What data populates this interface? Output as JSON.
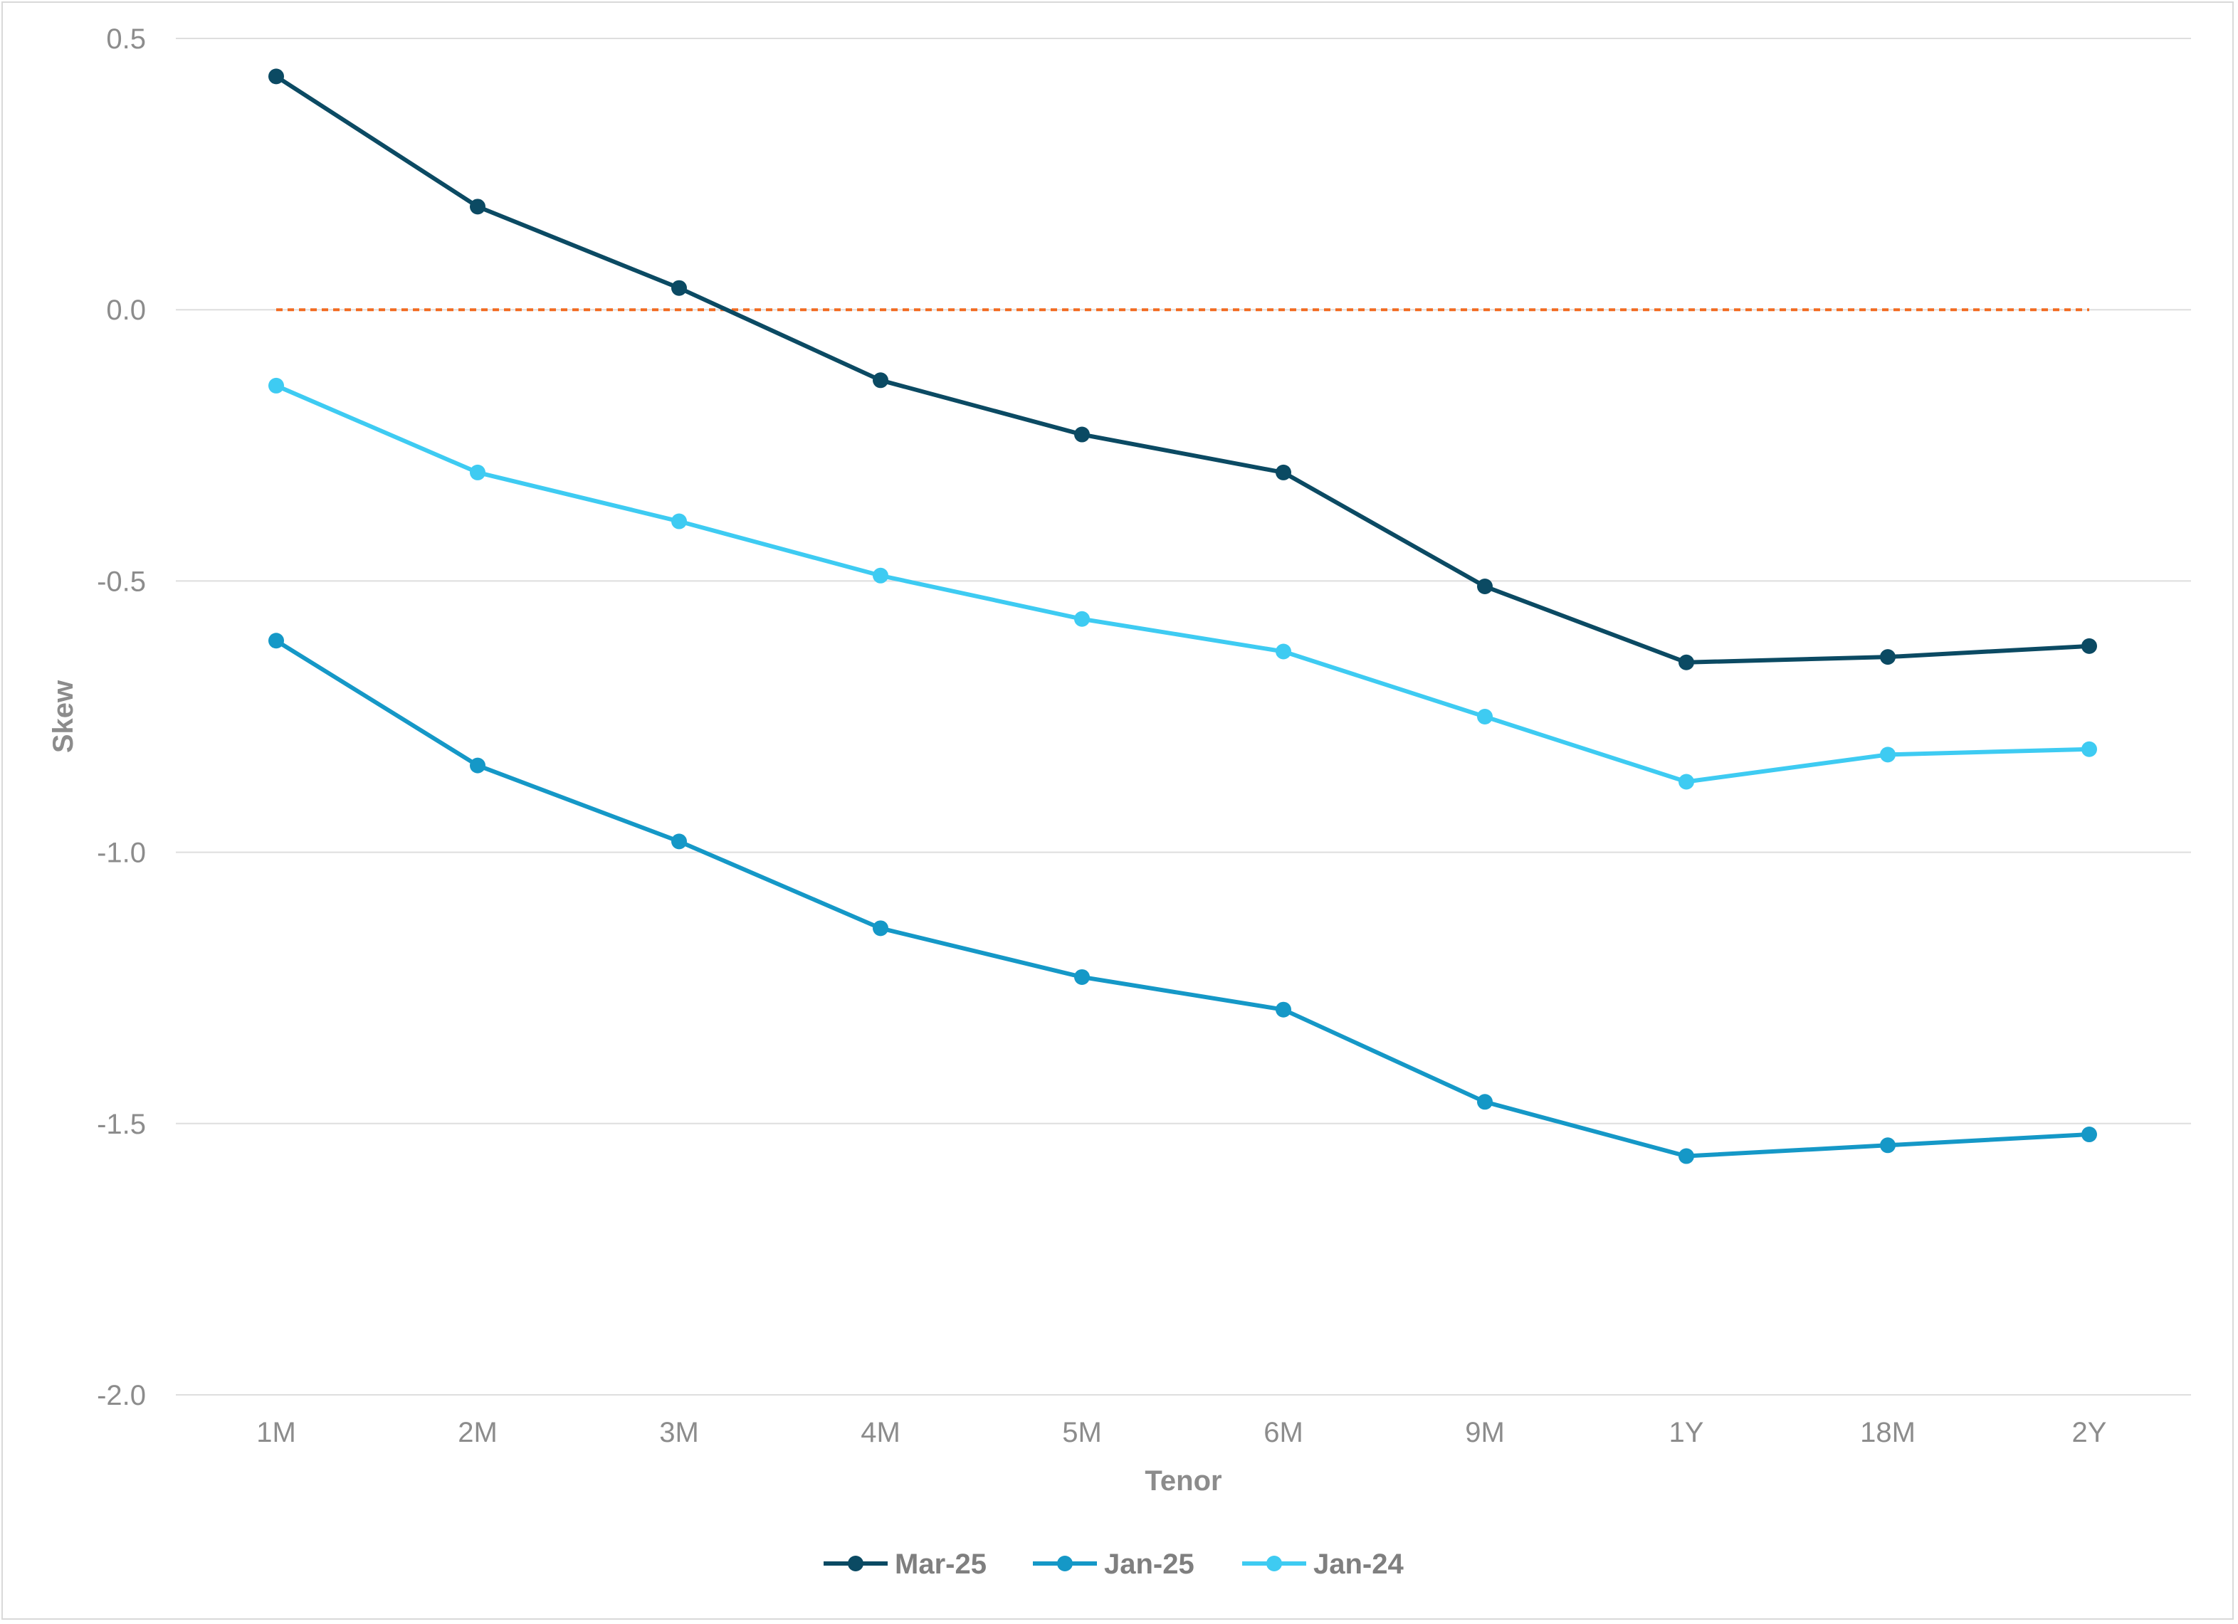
{
  "chart_data": {
    "type": "line",
    "title": "",
    "xlabel": "Tenor",
    "ylabel": "Skew",
    "categories": [
      "1M",
      "2M",
      "3M",
      "4M",
      "5M",
      "6M",
      "9M",
      "1Y",
      "18M",
      "2Y"
    ],
    "ylim": [
      -2.0,
      0.5
    ],
    "yticks": [
      "0.5",
      "0.0",
      "-0.5",
      "-1.0",
      "-1.5",
      "-2.0"
    ],
    "ytick_values": [
      0.5,
      0.0,
      -0.5,
      -1.0,
      -1.5,
      -2.0
    ],
    "grid": "horizontal",
    "legend_position": "bottom",
    "series": [
      {
        "name": "Mar-25",
        "color": "#0b4a63",
        "values": [
          0.43,
          0.19,
          0.04,
          -0.13,
          -0.23,
          -0.3,
          -0.51,
          -0.65,
          -0.64,
          -0.62
        ]
      },
      {
        "name": "Jan-25",
        "color": "#1598c7",
        "values": [
          -0.61,
          -0.84,
          -0.98,
          -1.14,
          -1.23,
          -1.29,
          -1.46,
          -1.56,
          -1.54,
          -1.52
        ]
      },
      {
        "name": "Jan-24",
        "color": "#3ecbf2",
        "values": [
          -0.14,
          -0.3,
          -0.39,
          -0.49,
          -0.57,
          -0.63,
          -0.75,
          -0.87,
          -0.82,
          -0.81
        ]
      }
    ],
    "reference_line": {
      "value": 0.0,
      "color": "#f26b21",
      "style": "dashed"
    }
  }
}
